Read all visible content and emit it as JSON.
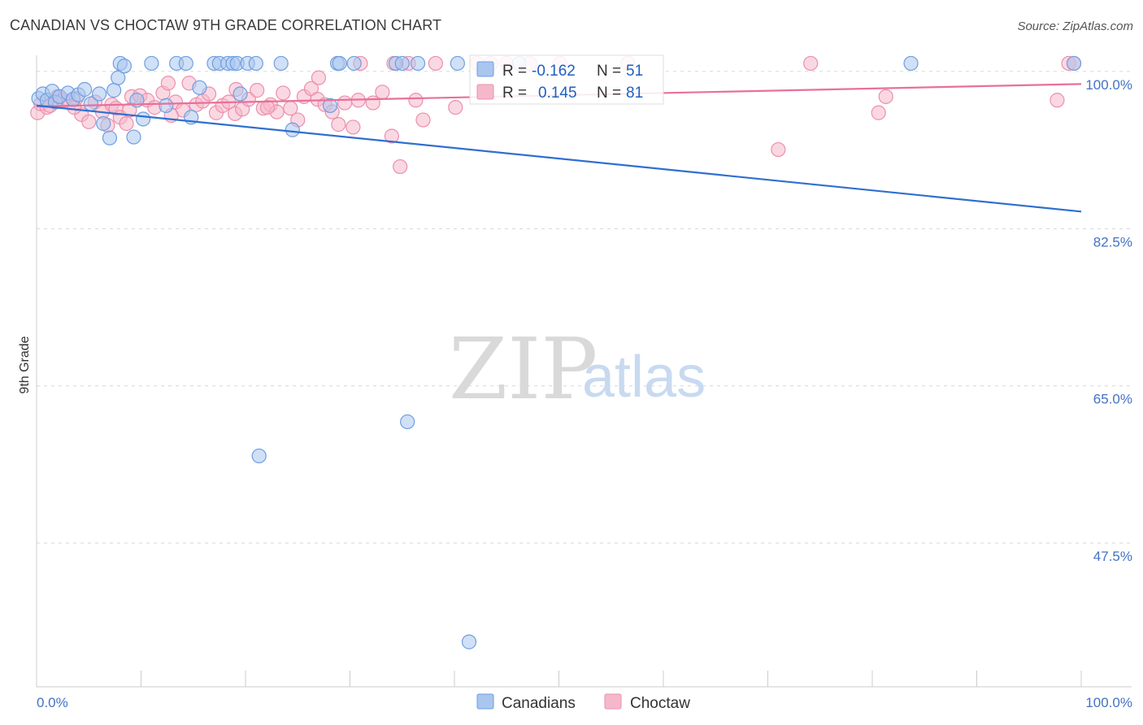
{
  "header": {
    "title": "CANADIAN VS CHOCTAW 9TH GRADE CORRELATION CHART",
    "source": "Source: ZipAtlas.com"
  },
  "watermark": {
    "part1": "ZIP",
    "part2": "atlas"
  },
  "legend": {
    "r_label": "R =",
    "n_label": "N =",
    "series": [
      {
        "name": "Canadians",
        "r": "-0.162",
        "n": "51"
      },
      {
        "name": "Choctaw",
        "r": "0.145",
        "n": "81"
      }
    ]
  },
  "colors": {
    "blue_fill": "#a9c6ef",
    "blue_stroke": "#6f9ee0",
    "blue_line": "#2f6fd0",
    "pink_fill": "#f5b8cb",
    "pink_stroke": "#ec8fad",
    "pink_line": "#e8709a",
    "grid": "#d6d6d6",
    "axis_text": "#4472c4"
  },
  "chart_data": {
    "type": "scatter",
    "title": "CANADIAN VS CHOCTAW 9TH GRADE CORRELATION CHART",
    "xlabel": "",
    "ylabel": "9th Grade",
    "xlim": [
      0,
      100
    ],
    "ylim": [
      31.5,
      101.8
    ],
    "x_tick_labels": [
      "0.0%",
      "100.0%"
    ],
    "y_ticks": [
      100.0,
      82.5,
      65.0,
      47.5
    ],
    "y_tick_labels": [
      "100.0%",
      "82.5%",
      "65.0%",
      "47.5%"
    ],
    "grid": true,
    "legend_position": "top-center",
    "series": [
      {
        "name": "Canadians",
        "r": -0.162,
        "n": 51,
        "trend": {
          "x": [
            0,
            100
          ],
          "y": [
            96.2,
            84.4
          ]
        },
        "points": [
          [
            0.2,
            97.0
          ],
          [
            0.6,
            97.5
          ],
          [
            1.0,
            96.8
          ],
          [
            1.5,
            97.8
          ],
          [
            1.8,
            96.6
          ],
          [
            2.2,
            97.2
          ],
          [
            3.0,
            97.6
          ],
          [
            3.5,
            96.9
          ],
          [
            4.0,
            97.4
          ],
          [
            4.6,
            98.0
          ],
          [
            5.2,
            96.4
          ],
          [
            6.0,
            97.5
          ],
          [
            6.4,
            94.2
          ],
          [
            7.0,
            92.6
          ],
          [
            7.4,
            97.9
          ],
          [
            7.8,
            99.3
          ],
          [
            8.0,
            100.9
          ],
          [
            8.4,
            100.6
          ],
          [
            9.3,
            92.7
          ],
          [
            9.6,
            96.8
          ],
          [
            10.2,
            94.7
          ],
          [
            11.0,
            100.9
          ],
          [
            12.4,
            96.2
          ],
          [
            13.4,
            100.9
          ],
          [
            14.3,
            100.9
          ],
          [
            14.8,
            94.9
          ],
          [
            15.6,
            98.2
          ],
          [
            17.0,
            100.9
          ],
          [
            17.5,
            100.9
          ],
          [
            18.3,
            100.9
          ],
          [
            18.8,
            100.9
          ],
          [
            19.2,
            100.9
          ],
          [
            19.5,
            97.5
          ],
          [
            20.2,
            100.9
          ],
          [
            21.0,
            100.9
          ],
          [
            21.3,
            57.2
          ],
          [
            23.4,
            100.9
          ],
          [
            24.5,
            93.5
          ],
          [
            28.1,
            96.2
          ],
          [
            28.8,
            100.9
          ],
          [
            29.0,
            100.9
          ],
          [
            30.4,
            100.9
          ],
          [
            34.4,
            100.9
          ],
          [
            35.0,
            100.9
          ],
          [
            35.5,
            61.0
          ],
          [
            36.5,
            100.9
          ],
          [
            40.3,
            100.9
          ],
          [
            41.4,
            36.5
          ],
          [
            46.2,
            100.9
          ],
          [
            83.7,
            100.9
          ],
          [
            99.3,
            100.9
          ]
        ]
      },
      {
        "name": "Choctaw",
        "r": 0.145,
        "n": 81,
        "trend": {
          "x": [
            0,
            100
          ],
          "y": [
            96.1,
            98.6
          ]
        },
        "points": [
          [
            0.1,
            95.4
          ],
          [
            0.4,
            96.4
          ],
          [
            1.0,
            96.0
          ],
          [
            2.0,
            97.2
          ],
          [
            2.6,
            96.8
          ],
          [
            3.2,
            96.5
          ],
          [
            3.8,
            97.0
          ],
          [
            4.3,
            95.2
          ],
          [
            5.0,
            94.4
          ],
          [
            5.6,
            96.6
          ],
          [
            6.3,
            95.5
          ],
          [
            6.8,
            94.0
          ],
          [
            7.2,
            96.3
          ],
          [
            7.6,
            95.9
          ],
          [
            8.0,
            94.9
          ],
          [
            8.6,
            94.2
          ],
          [
            9.1,
            97.2
          ],
          [
            9.9,
            97.3
          ],
          [
            10.6,
            96.8
          ],
          [
            11.3,
            96.0
          ],
          [
            12.1,
            97.6
          ],
          [
            12.6,
            98.7
          ],
          [
            13.3,
            96.6
          ],
          [
            14.0,
            95.7
          ],
          [
            14.6,
            98.7
          ],
          [
            15.3,
            96.3
          ],
          [
            15.9,
            96.7
          ],
          [
            16.5,
            97.5
          ],
          [
            17.2,
            95.4
          ],
          [
            17.8,
            96.2
          ],
          [
            18.4,
            96.6
          ],
          [
            19.0,
            95.3
          ],
          [
            19.7,
            95.8
          ],
          [
            20.3,
            96.9
          ],
          [
            21.1,
            97.9
          ],
          [
            21.7,
            95.9
          ],
          [
            22.4,
            96.3
          ],
          [
            23.0,
            95.5
          ],
          [
            23.6,
            97.6
          ],
          [
            24.3,
            95.9
          ],
          [
            25.0,
            94.6
          ],
          [
            25.6,
            97.2
          ],
          [
            26.3,
            98.1
          ],
          [
            26.9,
            96.9
          ],
          [
            27.6,
            96.3
          ],
          [
            28.3,
            95.5
          ],
          [
            28.9,
            94.1
          ],
          [
            29.5,
            96.5
          ],
          [
            30.3,
            93.8
          ],
          [
            31.0,
            100.9
          ],
          [
            32.2,
            96.5
          ],
          [
            33.1,
            97.7
          ],
          [
            34.0,
            92.8
          ],
          [
            34.8,
            89.4
          ],
          [
            35.6,
            100.9
          ],
          [
            36.3,
            96.8
          ],
          [
            37.0,
            94.6
          ],
          [
            38.2,
            100.9
          ],
          [
            40.1,
            96.0
          ],
          [
            42.2,
            100.9
          ],
          [
            43.5,
            100.9
          ],
          [
            45.0,
            100.9
          ],
          [
            47.2,
            100.9
          ],
          [
            50.1,
            100.9
          ],
          [
            56.6,
            100.9
          ],
          [
            71.0,
            91.3
          ],
          [
            74.1,
            100.9
          ],
          [
            80.6,
            95.4
          ],
          [
            81.3,
            97.2
          ],
          [
            97.7,
            96.8
          ],
          [
            98.8,
            100.9
          ],
          [
            99.3,
            100.9
          ],
          [
            1.3,
            96.2
          ],
          [
            3.6,
            96.0
          ],
          [
            12.9,
            95.1
          ],
          [
            22.1,
            96.0
          ],
          [
            30.8,
            96.8
          ],
          [
            34.2,
            100.9
          ],
          [
            27.0,
            99.3
          ],
          [
            19.1,
            98.0
          ],
          [
            8.9,
            95.7
          ]
        ]
      }
    ]
  }
}
